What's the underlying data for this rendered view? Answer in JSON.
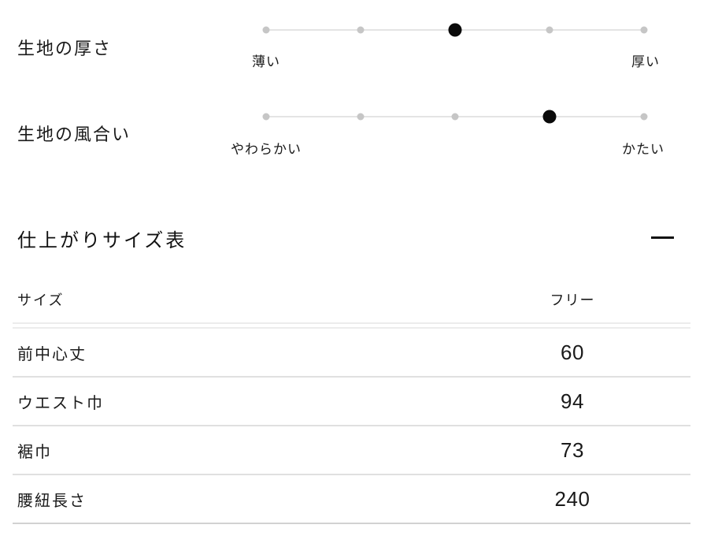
{
  "fabric_scales": [
    {
      "label": "生地の厚さ",
      "left_label": "薄い",
      "right_label": "厚い",
      "levels": 5,
      "active_index": 2
    },
    {
      "label": "生地の風合い",
      "left_label": "やわらかい",
      "right_label": "かたい",
      "levels": 5,
      "active_index": 3
    }
  ],
  "size_section": {
    "title": "仕上がりサイズ表",
    "collapse_icon": "minus-icon",
    "state": "expanded"
  },
  "size_table": {
    "header": {
      "label": "サイズ",
      "value": "フリー"
    },
    "rows": [
      {
        "label": "前中心丈",
        "value": "60"
      },
      {
        "label": "ウエスト巾",
        "value": "94"
      },
      {
        "label": "裾巾",
        "value": "73"
      },
      {
        "label": "腰紐長さ",
        "value": "240"
      }
    ]
  },
  "colors": {
    "text": "#1a1a1a",
    "scale_line": "#e4e4e4",
    "scale_dot_inactive": "#c6c6c6",
    "scale_dot_active": "#0a0a0a",
    "row_divider": "#e0e0e0",
    "header_divider": "#ececec"
  }
}
